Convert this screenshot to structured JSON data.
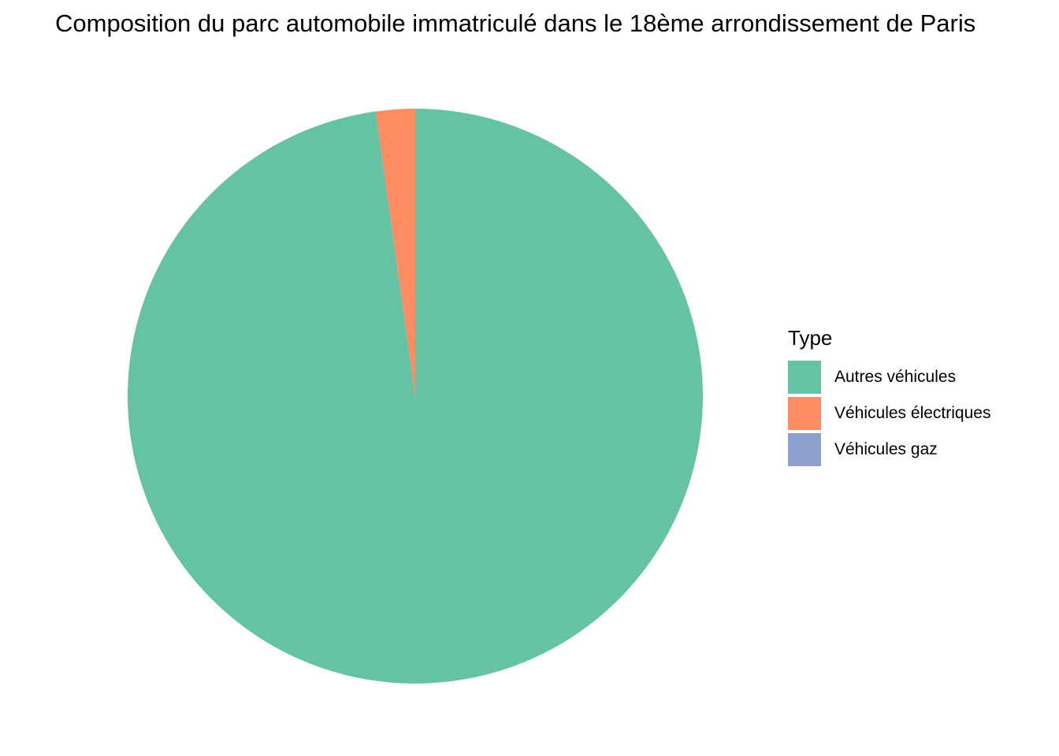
{
  "chart_data": {
    "type": "pie",
    "title": "Composition du parc automobile immatriculé dans le 18ème arrondissement de Paris",
    "legend_title": "Type",
    "legend_position": "right",
    "categories": [
      "Autres véhicules",
      "Véhicules électriques",
      "Véhicules gaz"
    ],
    "values": [
      97.8,
      2.2,
      0.0
    ],
    "unit": "%",
    "colors": [
      "#66c2a5",
      "#fc8d62",
      "#8da0cb"
    ],
    "start_angle_deg": 0,
    "direction": "clockwise"
  }
}
